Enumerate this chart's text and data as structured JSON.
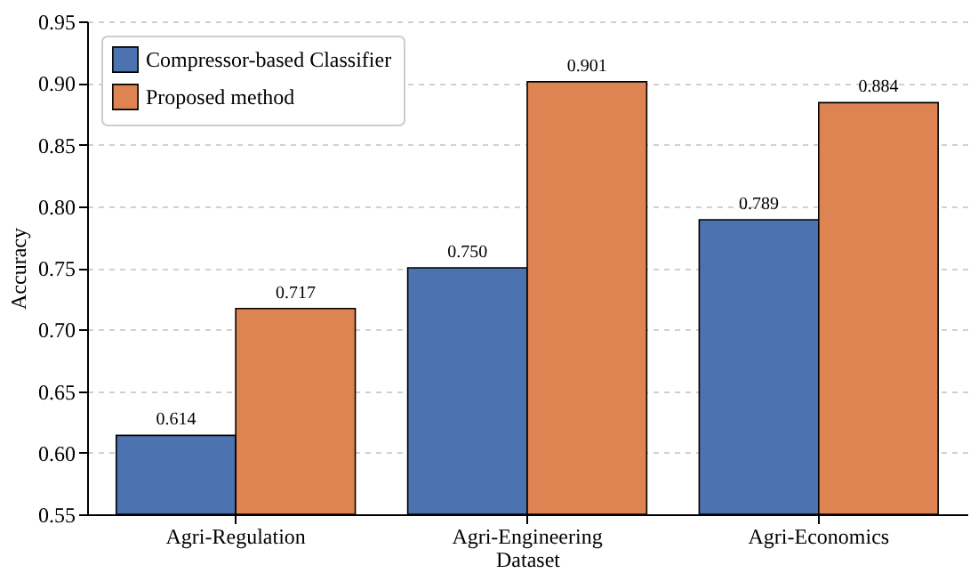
{
  "chart_data": {
    "type": "bar",
    "xlabel": "Dataset",
    "ylabel": "Accuracy",
    "categories": [
      "Agri-Regulation",
      "Agri-Engineering",
      "Agri-Economics"
    ],
    "series": [
      {
        "name": "Compressor-based Classifier",
        "color": "#4c72b0",
        "values": [
          0.614,
          0.75,
          0.789
        ],
        "value_labels": [
          "0.614",
          "0.750",
          "0.789"
        ]
      },
      {
        "name": "Proposed method",
        "color": "#dd8452",
        "values": [
          0.717,
          0.901,
          0.884
        ],
        "value_labels": [
          "0.717",
          "0.901",
          "0.884"
        ]
      }
    ],
    "ylim": [
      0.55,
      0.95
    ],
    "yticks": [
      0.55,
      {
        "value": 0.6,
        "label": "0.60"
      },
      0.65,
      {
        "value": 0.7,
        "label": "0.70"
      },
      0.75,
      {
        "value": 0.8,
        "label": "0.80"
      },
      0.85,
      {
        "value": 0.9,
        "label": "0.90"
      },
      0.95
    ],
    "grid": "y",
    "legend": "top left"
  }
}
